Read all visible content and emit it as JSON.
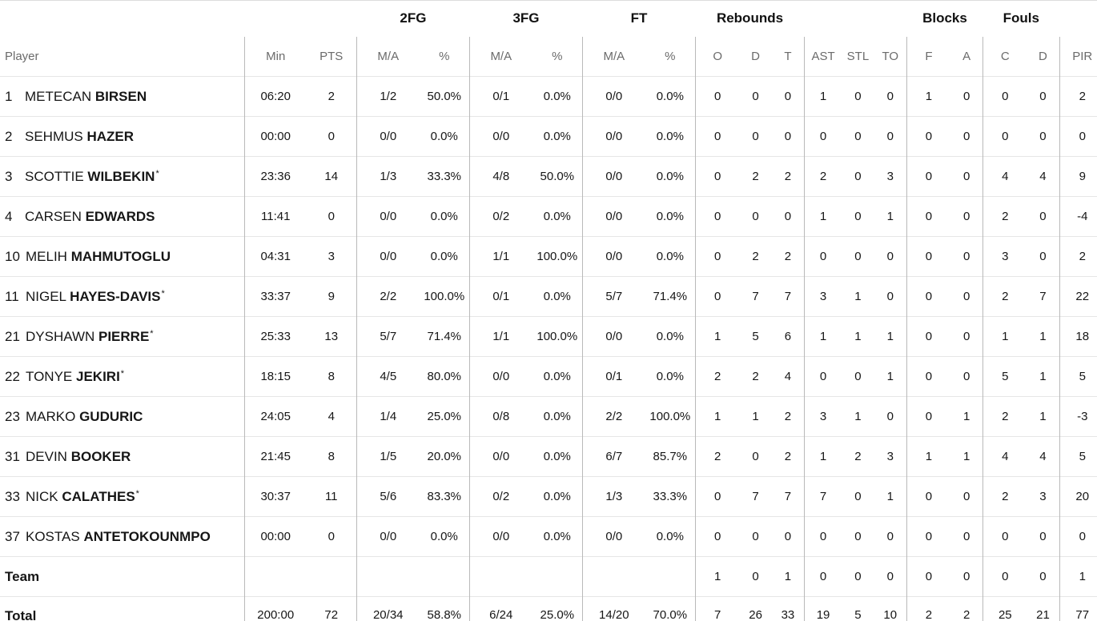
{
  "headers": {
    "groups": {
      "two_fg": "2FG",
      "three_fg": "3FG",
      "ft": "FT",
      "rebounds": "Rebounds",
      "blocks": "Blocks",
      "fouls": "Fouls"
    },
    "columns": {
      "player": "Player",
      "min": "Min",
      "pts": "PTS",
      "fg2_ma": "M/A",
      "fg2_pct": "%",
      "fg3_ma": "M/A",
      "fg3_pct": "%",
      "ft_ma": "M/A",
      "ft_pct": "%",
      "reb_o": "O",
      "reb_d": "D",
      "reb_t": "T",
      "ast": "AST",
      "stl": "STL",
      "to": "TO",
      "blk_f": "F",
      "blk_a": "A",
      "foul_c": "C",
      "foul_d": "D",
      "pir": "PIR"
    }
  },
  "players": [
    {
      "num": "1",
      "first": "METECAN",
      "last": "BIRSEN",
      "star": "",
      "min": "06:20",
      "pts": "2",
      "fg2_ma": "1/2",
      "fg2_pct": "50.0%",
      "fg3_ma": "0/1",
      "fg3_pct": "0.0%",
      "ft_ma": "0/0",
      "ft_pct": "0.0%",
      "reb_o": "0",
      "reb_d": "0",
      "reb_t": "0",
      "ast": "1",
      "stl": "0",
      "to": "0",
      "blk_f": "1",
      "blk_a": "0",
      "foul_c": "0",
      "foul_d": "0",
      "pir": "2"
    },
    {
      "num": "2",
      "first": "SEHMUS",
      "last": "HAZER",
      "star": "",
      "min": "00:00",
      "pts": "0",
      "fg2_ma": "0/0",
      "fg2_pct": "0.0%",
      "fg3_ma": "0/0",
      "fg3_pct": "0.0%",
      "ft_ma": "0/0",
      "ft_pct": "0.0%",
      "reb_o": "0",
      "reb_d": "0",
      "reb_t": "0",
      "ast": "0",
      "stl": "0",
      "to": "0",
      "blk_f": "0",
      "blk_a": "0",
      "foul_c": "0",
      "foul_d": "0",
      "pir": "0"
    },
    {
      "num": "3",
      "first": "SCOTTIE",
      "last": "WILBEKIN",
      "star": "*",
      "min": "23:36",
      "pts": "14",
      "fg2_ma": "1/3",
      "fg2_pct": "33.3%",
      "fg3_ma": "4/8",
      "fg3_pct": "50.0%",
      "ft_ma": "0/0",
      "ft_pct": "0.0%",
      "reb_o": "0",
      "reb_d": "2",
      "reb_t": "2",
      "ast": "2",
      "stl": "0",
      "to": "3",
      "blk_f": "0",
      "blk_a": "0",
      "foul_c": "4",
      "foul_d": "4",
      "pir": "9"
    },
    {
      "num": "4",
      "first": "CARSEN",
      "last": "EDWARDS",
      "star": "",
      "min": "11:41",
      "pts": "0",
      "fg2_ma": "0/0",
      "fg2_pct": "0.0%",
      "fg3_ma": "0/2",
      "fg3_pct": "0.0%",
      "ft_ma": "0/0",
      "ft_pct": "0.0%",
      "reb_o": "0",
      "reb_d": "0",
      "reb_t": "0",
      "ast": "1",
      "stl": "0",
      "to": "1",
      "blk_f": "0",
      "blk_a": "0",
      "foul_c": "2",
      "foul_d": "0",
      "pir": "-4"
    },
    {
      "num": "10",
      "first": "MELIH",
      "last": "MAHMUTOGLU",
      "star": "",
      "min": "04:31",
      "pts": "3",
      "fg2_ma": "0/0",
      "fg2_pct": "0.0%",
      "fg3_ma": "1/1",
      "fg3_pct": "100.0%",
      "ft_ma": "0/0",
      "ft_pct": "0.0%",
      "reb_o": "0",
      "reb_d": "2",
      "reb_t": "2",
      "ast": "0",
      "stl": "0",
      "to": "0",
      "blk_f": "0",
      "blk_a": "0",
      "foul_c": "3",
      "foul_d": "0",
      "pir": "2"
    },
    {
      "num": "11",
      "first": "NIGEL",
      "last": "HAYES-DAVIS",
      "star": "*",
      "min": "33:37",
      "pts": "9",
      "fg2_ma": "2/2",
      "fg2_pct": "100.0%",
      "fg3_ma": "0/1",
      "fg3_pct": "0.0%",
      "ft_ma": "5/7",
      "ft_pct": "71.4%",
      "reb_o": "0",
      "reb_d": "7",
      "reb_t": "7",
      "ast": "3",
      "stl": "1",
      "to": "0",
      "blk_f": "0",
      "blk_a": "0",
      "foul_c": "2",
      "foul_d": "7",
      "pir": "22"
    },
    {
      "num": "21",
      "first": "DYSHAWN",
      "last": "PIERRE",
      "star": "*",
      "min": "25:33",
      "pts": "13",
      "fg2_ma": "5/7",
      "fg2_pct": "71.4%",
      "fg3_ma": "1/1",
      "fg3_pct": "100.0%",
      "ft_ma": "0/0",
      "ft_pct": "0.0%",
      "reb_o": "1",
      "reb_d": "5",
      "reb_t": "6",
      "ast": "1",
      "stl": "1",
      "to": "1",
      "blk_f": "0",
      "blk_a": "0",
      "foul_c": "1",
      "foul_d": "1",
      "pir": "18"
    },
    {
      "num": "22",
      "first": "TONYE",
      "last": "JEKIRI",
      "star": "*",
      "min": "18:15",
      "pts": "8",
      "fg2_ma": "4/5",
      "fg2_pct": "80.0%",
      "fg3_ma": "0/0",
      "fg3_pct": "0.0%",
      "ft_ma": "0/1",
      "ft_pct": "0.0%",
      "reb_o": "2",
      "reb_d": "2",
      "reb_t": "4",
      "ast": "0",
      "stl": "0",
      "to": "1",
      "blk_f": "0",
      "blk_a": "0",
      "foul_c": "5",
      "foul_d": "1",
      "pir": "5"
    },
    {
      "num": "23",
      "first": "MARKO",
      "last": "GUDURIC",
      "star": "",
      "min": "24:05",
      "pts": "4",
      "fg2_ma": "1/4",
      "fg2_pct": "25.0%",
      "fg3_ma": "0/8",
      "fg3_pct": "0.0%",
      "ft_ma": "2/2",
      "ft_pct": "100.0%",
      "reb_o": "1",
      "reb_d": "1",
      "reb_t": "2",
      "ast": "3",
      "stl": "1",
      "to": "0",
      "blk_f": "0",
      "blk_a": "1",
      "foul_c": "2",
      "foul_d": "1",
      "pir": "-3"
    },
    {
      "num": "31",
      "first": "DEVIN",
      "last": "BOOKER",
      "star": "",
      "min": "21:45",
      "pts": "8",
      "fg2_ma": "1/5",
      "fg2_pct": "20.0%",
      "fg3_ma": "0/0",
      "fg3_pct": "0.0%",
      "ft_ma": "6/7",
      "ft_pct": "85.7%",
      "reb_o": "2",
      "reb_d": "0",
      "reb_t": "2",
      "ast": "1",
      "stl": "2",
      "to": "3",
      "blk_f": "1",
      "blk_a": "1",
      "foul_c": "4",
      "foul_d": "4",
      "pir": "5"
    },
    {
      "num": "33",
      "first": "NICK",
      "last": "CALATHES",
      "star": "*",
      "min": "30:37",
      "pts": "11",
      "fg2_ma": "5/6",
      "fg2_pct": "83.3%",
      "fg3_ma": "0/2",
      "fg3_pct": "0.0%",
      "ft_ma": "1/3",
      "ft_pct": "33.3%",
      "reb_o": "0",
      "reb_d": "7",
      "reb_t": "7",
      "ast": "7",
      "stl": "0",
      "to": "1",
      "blk_f": "0",
      "blk_a": "0",
      "foul_c": "2",
      "foul_d": "3",
      "pir": "20"
    },
    {
      "num": "37",
      "first": "KOSTAS",
      "last": "ANTETOKOUNMPO",
      "star": "",
      "min": "00:00",
      "pts": "0",
      "fg2_ma": "0/0",
      "fg2_pct": "0.0%",
      "fg3_ma": "0/0",
      "fg3_pct": "0.0%",
      "ft_ma": "0/0",
      "ft_pct": "0.0%",
      "reb_o": "0",
      "reb_d": "0",
      "reb_t": "0",
      "ast": "0",
      "stl": "0",
      "to": "0",
      "blk_f": "0",
      "blk_a": "0",
      "foul_c": "0",
      "foul_d": "0",
      "pir": "0"
    }
  ],
  "team": {
    "label": "Team",
    "reb_o": "1",
    "reb_d": "0",
    "reb_t": "1",
    "ast": "0",
    "stl": "0",
    "to": "0",
    "blk_f": "0",
    "blk_a": "0",
    "foul_c": "0",
    "foul_d": "0",
    "pir": "1"
  },
  "total": {
    "label": "Total",
    "min": "200:00",
    "pts": "72",
    "fg2_ma": "20/34",
    "fg2_pct": "58.8%",
    "fg3_ma": "6/24",
    "fg3_pct": "25.0%",
    "ft_ma": "14/20",
    "ft_pct": "70.0%",
    "reb_o": "7",
    "reb_d": "26",
    "reb_t": "33",
    "ast": "19",
    "stl": "5",
    "to": "10",
    "blk_f": "2",
    "blk_a": "2",
    "foul_c": "25",
    "foul_d": "21",
    "pir": "77"
  }
}
